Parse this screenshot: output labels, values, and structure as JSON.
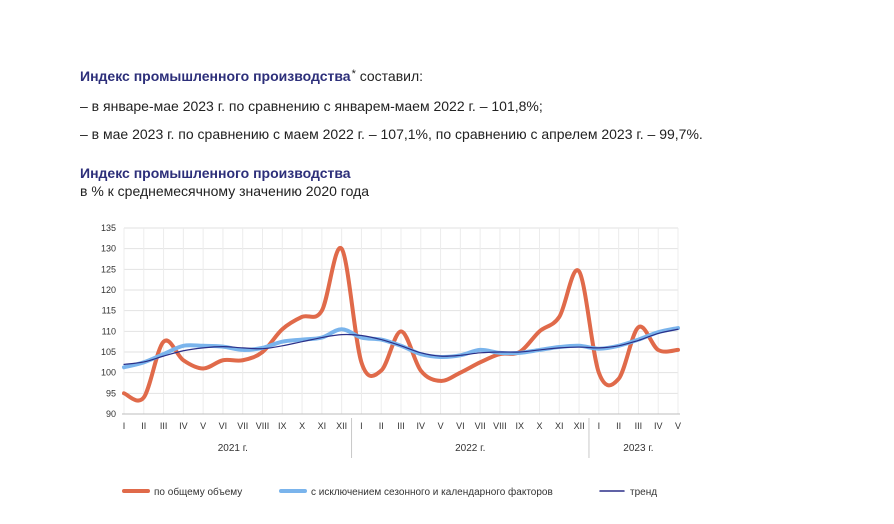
{
  "intro": {
    "title": "Индекс промышленного производства",
    "footnote_mark": "*",
    "title_suffix": " составил:",
    "line1": "– в январе-мае 2023 г. по сравнению с январем-маем 2022 г. – 101,8%;",
    "line2": "– в мае 2023 г. по сравнению с маем 2022 г. – 107,1%, по сравнению с апрелем 2023 г. –  99,7%."
  },
  "chart_data": {
    "type": "line",
    "title": "Индекс промышленного производства",
    "subtitle": "в % к среднемесячному значению 2020 года",
    "ylim": [
      90,
      135
    ],
    "yticks": [
      90,
      95,
      100,
      105,
      110,
      115,
      120,
      125,
      130,
      135
    ],
    "grid": true,
    "legend_position": "bottom",
    "months": [
      "I",
      "II",
      "III",
      "IV",
      "V",
      "VI",
      "VII",
      "VIII",
      "IX",
      "X",
      "XI",
      "XII",
      "I",
      "II",
      "III",
      "IV",
      "V",
      "VI",
      "VII",
      "VIII",
      "IX",
      "X",
      "XI",
      "XII",
      "I",
      "II",
      "III",
      "IV",
      "V"
    ],
    "years": [
      {
        "label": "2021 г.",
        "start": 0,
        "end": 11
      },
      {
        "label": "2022 г.",
        "start": 12,
        "end": 23
      },
      {
        "label": "2023 г.",
        "start": 24,
        "end": 28
      }
    ],
    "series": [
      {
        "name": "по общему объему",
        "color": "#e06a4a",
        "values": [
          95.0,
          94.0,
          107.5,
          103.0,
          101.0,
          103.0,
          103.0,
          105.0,
          110.5,
          113.5,
          115.0,
          130.0,
          102.5,
          100.5,
          110.0,
          100.5,
          98.0,
          100.0,
          102.5,
          104.5,
          105.0,
          110.0,
          113.5,
          124.5,
          100.0,
          98.5,
          111.0,
          105.5,
          105.5
        ]
      },
      {
        "name": "с исключением сезонного и календарного факторов",
        "color": "#7ab4ec",
        "values": [
          101.3,
          102.5,
          104.5,
          106.5,
          106.5,
          106.3,
          105.5,
          106.0,
          107.5,
          108.0,
          108.5,
          110.5,
          108.5,
          108.0,
          106.5,
          104.5,
          103.8,
          104.2,
          105.5,
          104.8,
          104.8,
          105.5,
          106.2,
          106.5,
          105.8,
          106.5,
          108.0,
          109.8,
          110.8
        ]
      },
      {
        "name": "тренд",
        "color": "#2b2f88",
        "values": [
          102.0,
          102.6,
          104.0,
          105.3,
          106.0,
          106.3,
          106.0,
          105.8,
          106.5,
          107.5,
          108.5,
          109.2,
          109.0,
          108.0,
          106.5,
          104.8,
          104.0,
          104.2,
          104.8,
          105.0,
          105.0,
          105.5,
          106.0,
          106.2,
          106.0,
          106.5,
          107.8,
          109.5,
          110.5
        ]
      }
    ]
  }
}
